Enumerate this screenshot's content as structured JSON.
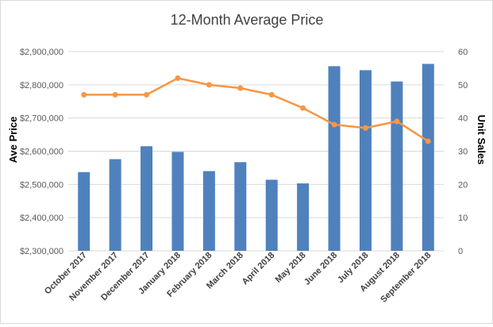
{
  "chart_data": {
    "type": "bar",
    "title": "12-Month Average Price",
    "categories": [
      "October 2017",
      "November 2017",
      "December 2017",
      "January 2018",
      "February 2018",
      "March 2018",
      "April 2018",
      "May 2018",
      "June 2018",
      "July 2018",
      "August 2018",
      "September 2018"
    ],
    "series": [
      {
        "values": [
          2537000,
          2576000,
          2615000,
          2598000,
          2540000,
          2567000,
          2514000,
          2503000,
          2856000,
          2844000,
          2810000,
          2863000
        ],
        "kind": "bar",
        "axis": "left",
        "color": "#4f81bd"
      },
      {
        "values": [
          47,
          47,
          47,
          52,
          50,
          49,
          47,
          43,
          38,
          37,
          39,
          33
        ],
        "kind": "line",
        "axis": "right",
        "color": "#f79646"
      }
    ],
    "ylabel": "Ave Price",
    "y2label": "Unit Sales",
    "ylim": [
      2300000,
      2900000
    ],
    "y2lim": [
      0,
      60
    ],
    "yticks": [
      "$2,300,000",
      "$2,400,000",
      "$2,500,000",
      "$2,600,000",
      "$2,700,000",
      "$2,800,000",
      "$2,900,000"
    ],
    "y2ticks": [
      "0",
      "10",
      "20",
      "30",
      "40",
      "50",
      "60"
    ],
    "grid": true,
    "legend": "none"
  }
}
